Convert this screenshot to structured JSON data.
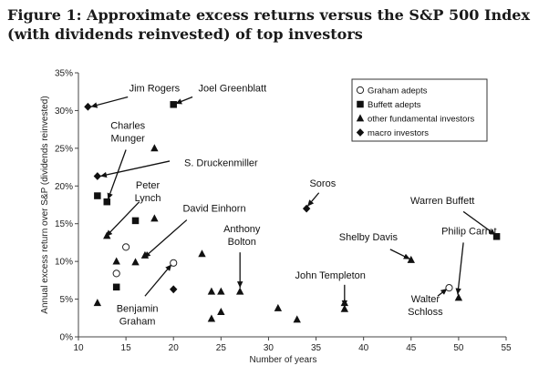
{
  "chart_data": {
    "type": "scatter",
    "title": "Figure 1: Approximate excess returns versus the S&P 500 Index (with dividends reinvested) of top investors",
    "xlabel": "Number of years",
    "ylabel": "Annual excess return over S&P (dividends reinvested)",
    "xlim": [
      10,
      55
    ],
    "ylim": [
      0,
      35
    ],
    "x_ticks": [
      10,
      15,
      20,
      25,
      30,
      35,
      40,
      45,
      50,
      55
    ],
    "y_ticks": [
      0,
      5,
      10,
      15,
      20,
      25,
      30,
      35
    ],
    "x_tick_labels": [
      "10",
      "15",
      "20",
      "25",
      "30",
      "35",
      "40",
      "45",
      "50",
      "55"
    ],
    "y_tick_labels": [
      "0%",
      "5%",
      "10%",
      "15%",
      "20%",
      "25%",
      "30%",
      "35%"
    ],
    "grid": false,
    "legend_position": "top-right",
    "series": [
      {
        "name": "Graham adepts",
        "marker": "open-circle",
        "points": [
          {
            "x": 15.0,
            "y": 11.9
          },
          {
            "x": 14.0,
            "y": 8.4
          },
          {
            "x": 20.0,
            "y": 9.8
          },
          {
            "x": 49.0,
            "y": 6.5
          }
        ]
      },
      {
        "name": "Buffett adepts",
        "marker": "square",
        "points": [
          {
            "x": 20.0,
            "y": 30.8
          },
          {
            "x": 12.0,
            "y": 18.7
          },
          {
            "x": 13.0,
            "y": 17.9
          },
          {
            "x": 16.0,
            "y": 15.4
          },
          {
            "x": 14.0,
            "y": 6.6
          },
          {
            "x": 54.0,
            "y": 13.3
          }
        ]
      },
      {
        "name": "other fundamental investors",
        "marker": "triangle",
        "points": [
          {
            "x": 18.0,
            "y": 25.0
          },
          {
            "x": 18.0,
            "y": 15.7
          },
          {
            "x": 13.0,
            "y": 13.4
          },
          {
            "x": 14.0,
            "y": 10.0
          },
          {
            "x": 16.0,
            "y": 9.9
          },
          {
            "x": 17.0,
            "y": 10.8
          },
          {
            "x": 12.0,
            "y": 4.5
          },
          {
            "x": 23.0,
            "y": 11.0
          },
          {
            "x": 24.0,
            "y": 6.0
          },
          {
            "x": 25.0,
            "y": 6.0
          },
          {
            "x": 27.0,
            "y": 6.0
          },
          {
            "x": 24.0,
            "y": 2.4
          },
          {
            "x": 25.0,
            "y": 3.3
          },
          {
            "x": 31.0,
            "y": 3.8
          },
          {
            "x": 33.0,
            "y": 2.3
          },
          {
            "x": 38.0,
            "y": 4.5
          },
          {
            "x": 38.0,
            "y": 3.7
          },
          {
            "x": 45.0,
            "y": 10.2
          },
          {
            "x": 50.0,
            "y": 5.2
          }
        ]
      },
      {
        "name": "macro investors",
        "marker": "diamond",
        "points": [
          {
            "x": 11.0,
            "y": 30.5
          },
          {
            "x": 12.0,
            "y": 21.3
          },
          {
            "x": 34.0,
            "y": 17.0
          },
          {
            "x": 20.0,
            "y": 6.3
          }
        ]
      }
    ],
    "annotations": [
      {
        "lines": [
          "Jim Rogers"
        ],
        "text_at": [
          18.0,
          32.5
        ],
        "anchor": "middle",
        "arrow_to": [
          11.3,
          30.5
        ],
        "arrow_from": [
          15.2,
          31.8
        ]
      },
      {
        "lines": [
          "Joel Greenblatt"
        ],
        "text_at": [
          26.2,
          32.5
        ],
        "anchor": "middle",
        "arrow_to": [
          20.2,
          30.9
        ],
        "arrow_from": [
          22.0,
          31.8
        ]
      },
      {
        "lines": [
          "Charles",
          "Munger"
        ],
        "text_at": [
          15.2,
          27.6
        ],
        "anchor": "middle",
        "arrow_to": [
          13.1,
          18.2
        ],
        "arrow_from": [
          15.0,
          24.8
        ]
      },
      {
        "lines": [
          "S. Druckenmiller"
        ],
        "text_at": [
          25.0,
          22.6
        ],
        "anchor": "middle",
        "arrow_to": [
          12.3,
          21.3
        ],
        "arrow_from": [
          19.6,
          23.3
        ]
      },
      {
        "lines": [
          "Peter",
          "Lynch"
        ],
        "text_at": [
          17.3,
          19.7
        ],
        "anchor": "middle",
        "arrow_to": [
          12.9,
          13.3
        ],
        "arrow_from": [
          16.4,
          17.9
        ]
      },
      {
        "lines": [
          "David Einhorn"
        ],
        "text_at": [
          24.3,
          16.6
        ],
        "anchor": "middle",
        "arrow_to": [
          16.9,
          10.5
        ],
        "arrow_from": [
          21.4,
          15.5
        ]
      },
      {
        "lines": [
          "Anthony",
          "Bolton"
        ],
        "text_at": [
          27.2,
          13.9
        ],
        "anchor": "middle",
        "arrow_to": [
          27.0,
          6.5
        ],
        "arrow_from": [
          27.0,
          11.2
        ]
      },
      {
        "lines": [
          "Soros"
        ],
        "text_at": [
          35.7,
          19.9
        ],
        "anchor": "middle",
        "arrow_to": [
          34.1,
          17.3
        ],
        "arrow_from": [
          35.3,
          19.1
        ]
      },
      {
        "lines": [
          "Warren Buffett"
        ],
        "text_at": [
          48.3,
          17.6
        ],
        "anchor": "middle",
        "arrow_to": [
          53.9,
          13.5
        ],
        "arrow_from": [
          50.5,
          16.6
        ]
      },
      {
        "lines": [
          "Philip Carret"
        ],
        "text_at": [
          51.1,
          13.6
        ],
        "anchor": "middle",
        "arrow_to": [
          49.9,
          5.6
        ],
        "arrow_from": [
          50.5,
          12.5
        ]
      },
      {
        "lines": [
          "Shelby Davis"
        ],
        "text_at": [
          40.5,
          12.8
        ],
        "anchor": "middle",
        "arrow_to": [
          44.9,
          10.3
        ],
        "arrow_from": [
          42.8,
          11.6
        ]
      },
      {
        "lines": [
          "John Templeton"
        ],
        "text_at": [
          36.5,
          7.7
        ],
        "anchor": "middle",
        "arrow_to": [
          38.0,
          4.0
        ],
        "arrow_from": [
          38.0,
          6.9
        ]
      },
      {
        "lines": [
          "Walter",
          "Schloss"
        ],
        "text_at": [
          46.5,
          4.6
        ],
        "anchor": "middle",
        "arrow_to": [
          48.8,
          6.4
        ],
        "arrow_from": [
          47.8,
          5.4
        ]
      },
      {
        "lines": [
          "Benjamin",
          "Graham"
        ],
        "text_at": [
          16.2,
          3.3
        ],
        "anchor": "middle",
        "arrow_to": [
          19.8,
          9.6
        ],
        "arrow_from": [
          17.0,
          5.4
        ]
      }
    ]
  }
}
